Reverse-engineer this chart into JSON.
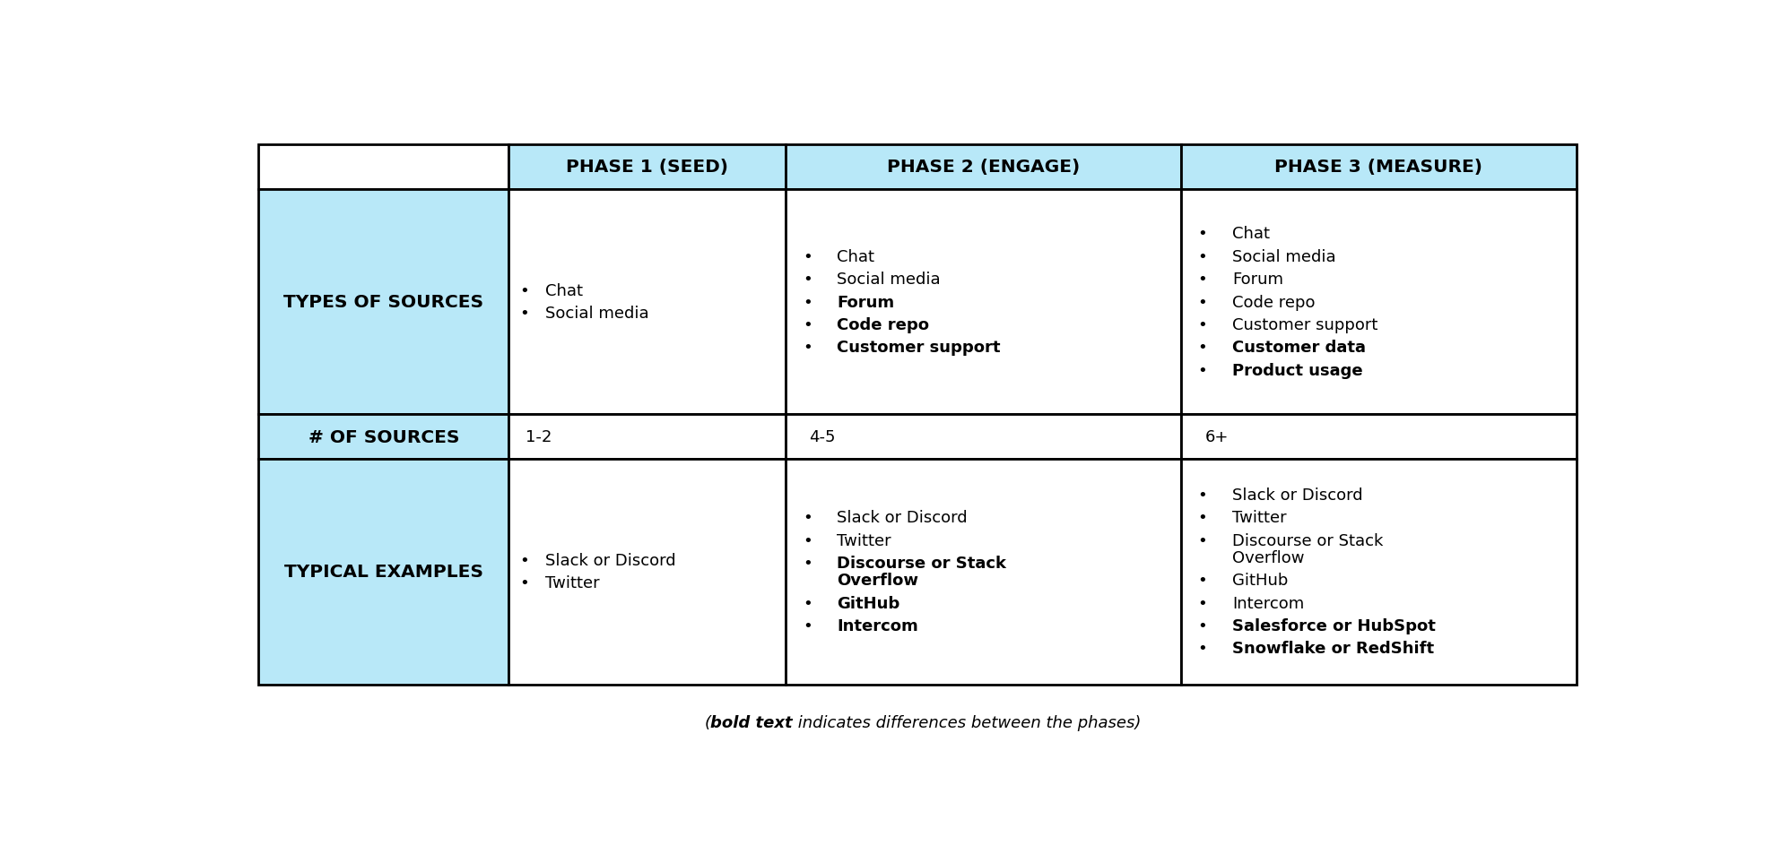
{
  "figsize": [
    19.96,
    9.54
  ],
  "dpi": 100,
  "bg_color": "#ffffff",
  "header_bg": "#b8e8f8",
  "row_label_bg": "#b8e8f8",
  "cell_bg": "#ffffff",
  "border_color": "#000000",
  "header_font_size": 14.5,
  "body_font_size": 13.0,
  "footnote_font_size": 13.0,
  "headers": [
    "",
    "PHASE 1 (SEED)",
    "PHASE 2 (ENGAGE)",
    "PHASE 3 (MEASURE)"
  ],
  "row_labels": [
    "TYPES OF SOURCES",
    "# OF SOURCES",
    "TYPICAL EXAMPLES"
  ],
  "sources_p1": [
    {
      "text": "Chat",
      "bold": false
    },
    {
      "text": "Social media",
      "bold": false
    }
  ],
  "sources_p2": [
    {
      "text": "Chat",
      "bold": false
    },
    {
      "text": "Social media",
      "bold": false
    },
    {
      "text": "Forum",
      "bold": true
    },
    {
      "text": "Code repo",
      "bold": true
    },
    {
      "text": "Customer support",
      "bold": true
    }
  ],
  "sources_p3": [
    {
      "text": "Chat",
      "bold": false
    },
    {
      "text": "Social media",
      "bold": false
    },
    {
      "text": "Forum",
      "bold": false
    },
    {
      "text": "Code repo",
      "bold": false
    },
    {
      "text": "Customer support",
      "bold": false
    },
    {
      "text": "Customer data",
      "bold": true
    },
    {
      "text": "Product usage",
      "bold": true
    }
  ],
  "count_p1": "1-2",
  "count_p2": "4-5",
  "count_p3": "6+",
  "examples_p1": [
    {
      "text": "Slack or Discord",
      "bold": false
    },
    {
      "text": "Twitter",
      "bold": false
    }
  ],
  "examples_p2": [
    {
      "text": "Slack or Discord",
      "bold": false
    },
    {
      "text": "Twitter",
      "bold": false
    },
    {
      "text": "Discourse or Stack\nOverflow",
      "bold": true
    },
    {
      "text": "GitHub",
      "bold": true
    },
    {
      "text": "Intercom",
      "bold": true
    }
  ],
  "examples_p3": [
    {
      "text": "Slack or Discord",
      "bold": false
    },
    {
      "text": "Twitter",
      "bold": false
    },
    {
      "text": "Discourse or Stack\nOverflow",
      "bold": false
    },
    {
      "text": "GitHub",
      "bold": false
    },
    {
      "text": "Intercom",
      "bold": false
    },
    {
      "text": "Salesforce or HubSpot",
      "bold": true
    },
    {
      "text": "Snowflake or RedShift",
      "bold": true
    }
  ],
  "fn_seg1": "(",
  "fn_seg2": "bold text",
  "fn_seg3": " indicates differences between the phases)"
}
